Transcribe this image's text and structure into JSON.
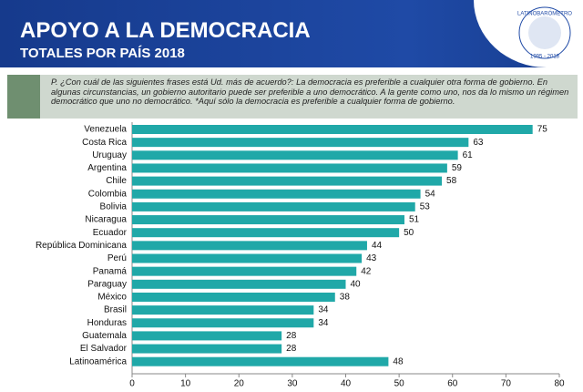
{
  "chart_data": {
    "type": "bar",
    "orientation": "horizontal",
    "title": "APOYO A LA DEMOCRACIA",
    "subtitle": "TOTALES POR PAÍS  2018",
    "note": "P. ¿Con cuál de las siguientes frases está Ud. más de acuerdo?: La democracia es preferible a cualquier otra forma de gobierno. En algunas circunstancias, un gobierno autoritario puede ser preferible a uno democrático. A la gente como uno, nos da lo mismo un régimen democrático que uno no democrático. *Aquí sólo la democracia es preferible a cualquier forma de gobierno.",
    "categories": [
      "Venezuela",
      "Costa Rica",
      "Uruguay",
      "Argentina",
      "Chile",
      "Colombia",
      "Bolivia",
      "Nicaragua",
      "Ecuador",
      "República Dominicana",
      "Perú",
      "Panamá",
      "Paraguay",
      "México",
      "Brasil",
      "Honduras",
      "Guatemala",
      "El Salvador",
      "Latinoamérica"
    ],
    "values": [
      75,
      63,
      61,
      59,
      58,
      54,
      53,
      51,
      50,
      44,
      43,
      42,
      40,
      38,
      34,
      34,
      28,
      28,
      48
    ],
    "color": "#20a8a8",
    "xlim": [
      0,
      80
    ],
    "xticks": [
      0,
      10,
      20,
      30,
      40,
      50,
      60,
      70,
      80
    ],
    "grid": false
  },
  "logo": {
    "name": "LATINOBARÓMETRO",
    "years": "1995 - 2018"
  }
}
